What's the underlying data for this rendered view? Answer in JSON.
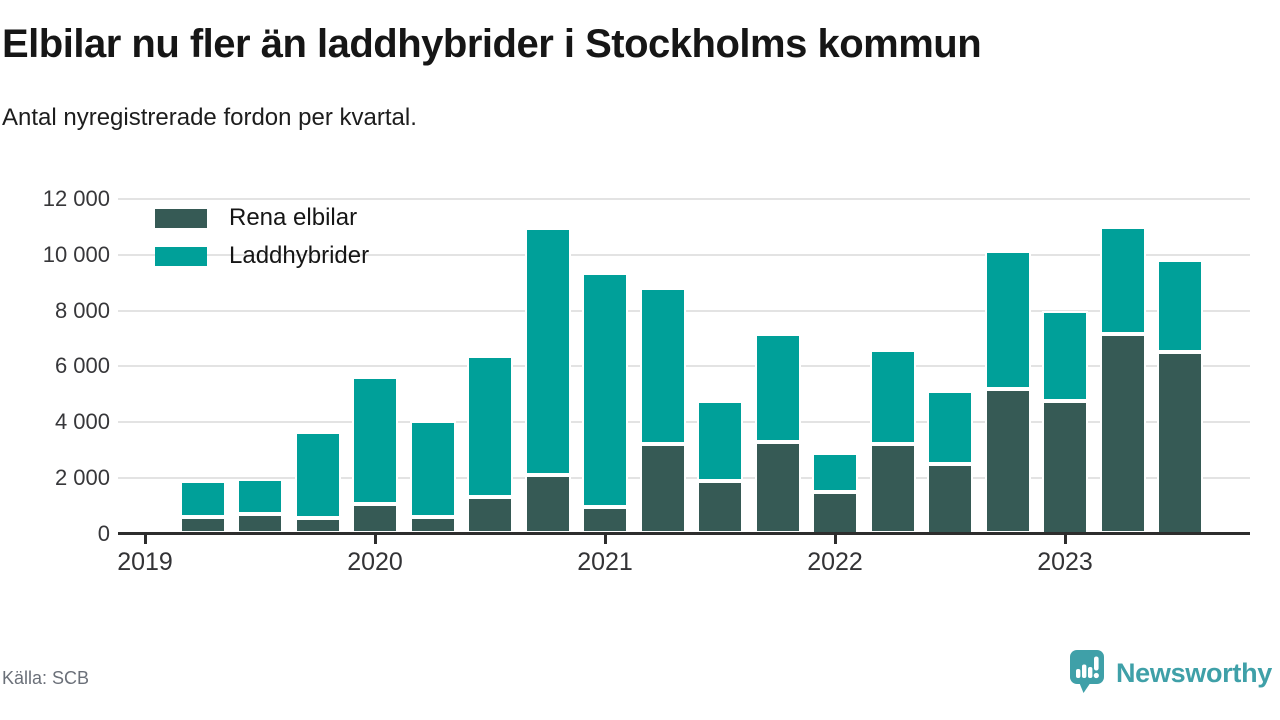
{
  "header": {
    "title": "Elbilar nu fler än laddhybrider i Stockholms kommun",
    "subtitle": "Antal nyregistrerade fordon per kvartal."
  },
  "legend": [
    {
      "label": "Rena elbilar",
      "color": "#365a55"
    },
    {
      "label": "Laddhybrider",
      "color": "#00a099"
    }
  ],
  "footer": {
    "source": "Källa: SCB",
    "brand": "Newsworthy"
  },
  "colors": {
    "rena_elbilar": "#365a55",
    "laddhybrider": "#00a099",
    "gridline": "#e3e3e3",
    "axis": "#2d2d2d",
    "brand_teal": "#3fa0a8"
  },
  "chart_data": {
    "type": "bar",
    "stacked": true,
    "title": "Elbilar nu fler än laddhybrider i Stockholms kommun",
    "subtitle": "Antal nyregistrerade fordon per kvartal.",
    "x": [
      "2019 K2",
      "2019 K3",
      "2019 K4",
      "2020 K1",
      "2020 K2",
      "2020 K3",
      "2020 K4",
      "2021 K1",
      "2021 K2",
      "2021 K3",
      "2021 K4",
      "2022 K1",
      "2022 K2",
      "2022 K3",
      "2022 K4",
      "2023 K1",
      "2023 K2",
      "2023 K3"
    ],
    "series": [
      {
        "name": "Rena elbilar",
        "color": "#365a55",
        "values": [
          600,
          700,
          550,
          1050,
          600,
          1300,
          2100,
          950,
          3200,
          1900,
          3300,
          1500,
          3200,
          2500,
          5200,
          4750,
          7150,
          6500
        ]
      },
      {
        "name": "Laddhybrider",
        "color": "#00a099",
        "values": [
          1300,
          1250,
          3100,
          4550,
          3450,
          5050,
          8850,
          8400,
          5600,
          2850,
          3850,
          1400,
          3400,
          2600,
          4950,
          3250,
          3850,
          3300
        ]
      }
    ],
    "ylim": [
      0,
      12000
    ],
    "yticks": [
      {
        "value": 0,
        "label": "0"
      },
      {
        "value": 2000,
        "label": "2 000"
      },
      {
        "value": 4000,
        "label": "4 000"
      },
      {
        "value": 6000,
        "label": "6 000"
      },
      {
        "value": 8000,
        "label": "8 000"
      },
      {
        "value": 10000,
        "label": "10 000"
      },
      {
        "value": 12000,
        "label": "12 000"
      }
    ],
    "year_ticks": [
      {
        "label": "2019",
        "index": -1
      },
      {
        "label": "2020",
        "index": 3
      },
      {
        "label": "2021",
        "index": 7
      },
      {
        "label": "2022",
        "index": 11
      },
      {
        "label": "2023",
        "index": 15
      }
    ],
    "grid": "horizontal",
    "legend_position": "top-left"
  }
}
